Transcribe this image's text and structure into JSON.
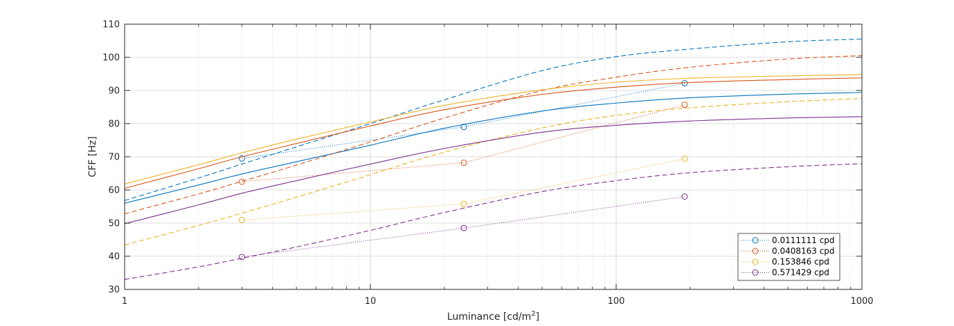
{
  "chart_data": {
    "type": "line",
    "x_scale": "log",
    "xlim": [
      1,
      1000
    ],
    "ylim": [
      30,
      110
    ],
    "grid": true,
    "legend_position": "bottom-right",
    "xlabel_main": "Luminance [cd/m",
    "xlabel_sup": "2",
    "xlabel_close": "]",
    "ylabel": "CFF [Hz]",
    "x_ticks": [
      {
        "value": 1,
        "label": "1"
      },
      {
        "value": 10,
        "label": "10"
      },
      {
        "value": 100,
        "label": "100"
      },
      {
        "value": 1000,
        "label": "1000"
      }
    ],
    "y_ticks": [
      {
        "value": 30,
        "label": "30"
      },
      {
        "value": 40,
        "label": "40"
      },
      {
        "value": 50,
        "label": "50"
      },
      {
        "value": 60,
        "label": "60"
      },
      {
        "value": 70,
        "label": "70"
      },
      {
        "value": 80,
        "label": "80"
      },
      {
        "value": 90,
        "label": "90"
      },
      {
        "value": 100,
        "label": "100"
      },
      {
        "value": 110,
        "label": "110"
      }
    ],
    "series": [
      {
        "name": "0.0111111 cpd",
        "color": "#0072BD",
        "measured": {
          "x": [
            3,
            24,
            190
          ],
          "y": [
            69.5,
            79,
            92.2
          ]
        },
        "fit_solid": {
          "x": [
            1,
            2,
            3,
            5,
            10,
            20,
            50,
            100,
            200,
            500,
            1000
          ],
          "y": [
            56,
            61.5,
            64.8,
            68.5,
            73.5,
            78.6,
            83.8,
            86.2,
            87.8,
            88.9,
            89.4
          ]
        },
        "fit_dashed": {
          "x": [
            1,
            2,
            3,
            5,
            10,
            20,
            50,
            100,
            200,
            500,
            1000
          ],
          "y": [
            56.8,
            63.6,
            67.8,
            73,
            80,
            87.2,
            96,
            100.2,
            102.5,
            104.7,
            105.5
          ]
        }
      },
      {
        "name": "0.0408163 cpd",
        "color": "#D95319",
        "measured": {
          "x": [
            3,
            24,
            190
          ],
          "y": [
            62.5,
            68.2,
            85.7
          ]
        },
        "fit_solid": {
          "x": [
            1,
            2,
            3,
            5,
            10,
            20,
            50,
            100,
            200,
            500,
            1000
          ],
          "y": [
            60.5,
            66.4,
            70,
            74,
            79.3,
            84.2,
            88.8,
            91,
            92.4,
            93.3,
            93.8
          ]
        },
        "fit_dashed": {
          "x": [
            1,
            2,
            3,
            5,
            10,
            20,
            50,
            100,
            200,
            500,
            1000
          ],
          "y": [
            52.8,
            58.8,
            62.6,
            67.5,
            74.5,
            81.7,
            90,
            94,
            97,
            99.5,
            100.5
          ]
        }
      },
      {
        "name": "0.153846 cpd",
        "color": "#EDB120",
        "measured": {
          "x": [
            3,
            24,
            190
          ],
          "y": [
            50.9,
            55.8,
            69.4
          ]
        },
        "fit_solid": {
          "x": [
            1,
            2,
            3,
            5,
            10,
            20,
            50,
            100,
            200,
            500,
            1000
          ],
          "y": [
            61.8,
            67.6,
            71.2,
            75.3,
            80.5,
            85.5,
            90.2,
            92.5,
            93.7,
            94.4,
            94.8
          ]
        },
        "fit_dashed": {
          "x": [
            1,
            2,
            3,
            5,
            10,
            20,
            50,
            100,
            200,
            500,
            1000
          ],
          "y": [
            43.4,
            49.3,
            53,
            57.8,
            64.6,
            71.4,
            78.7,
            82.5,
            84.8,
            86.6,
            87.6
          ]
        }
      },
      {
        "name": "0.571429 cpd",
        "color": "#7E2F8E",
        "measured": {
          "x": [
            3,
            24,
            190
          ],
          "y": [
            39.8,
            48.5,
            58
          ]
        },
        "fit_solid": {
          "x": [
            1,
            2,
            3,
            5,
            10,
            20,
            50,
            100,
            200,
            500,
            1000
          ],
          "y": [
            49.8,
            55.5,
            59,
            62.8,
            67.8,
            72.5,
            77.4,
            79.5,
            80.8,
            81.7,
            82.1
          ]
        },
        "fit_dashed": {
          "x": [
            1,
            2,
            3,
            5,
            10,
            20,
            50,
            100,
            200,
            500,
            1000
          ],
          "y": [
            33,
            36.8,
            39.4,
            42.8,
            47.8,
            53.2,
            59.5,
            62.8,
            65.2,
            67,
            67.9
          ]
        }
      }
    ]
  }
}
